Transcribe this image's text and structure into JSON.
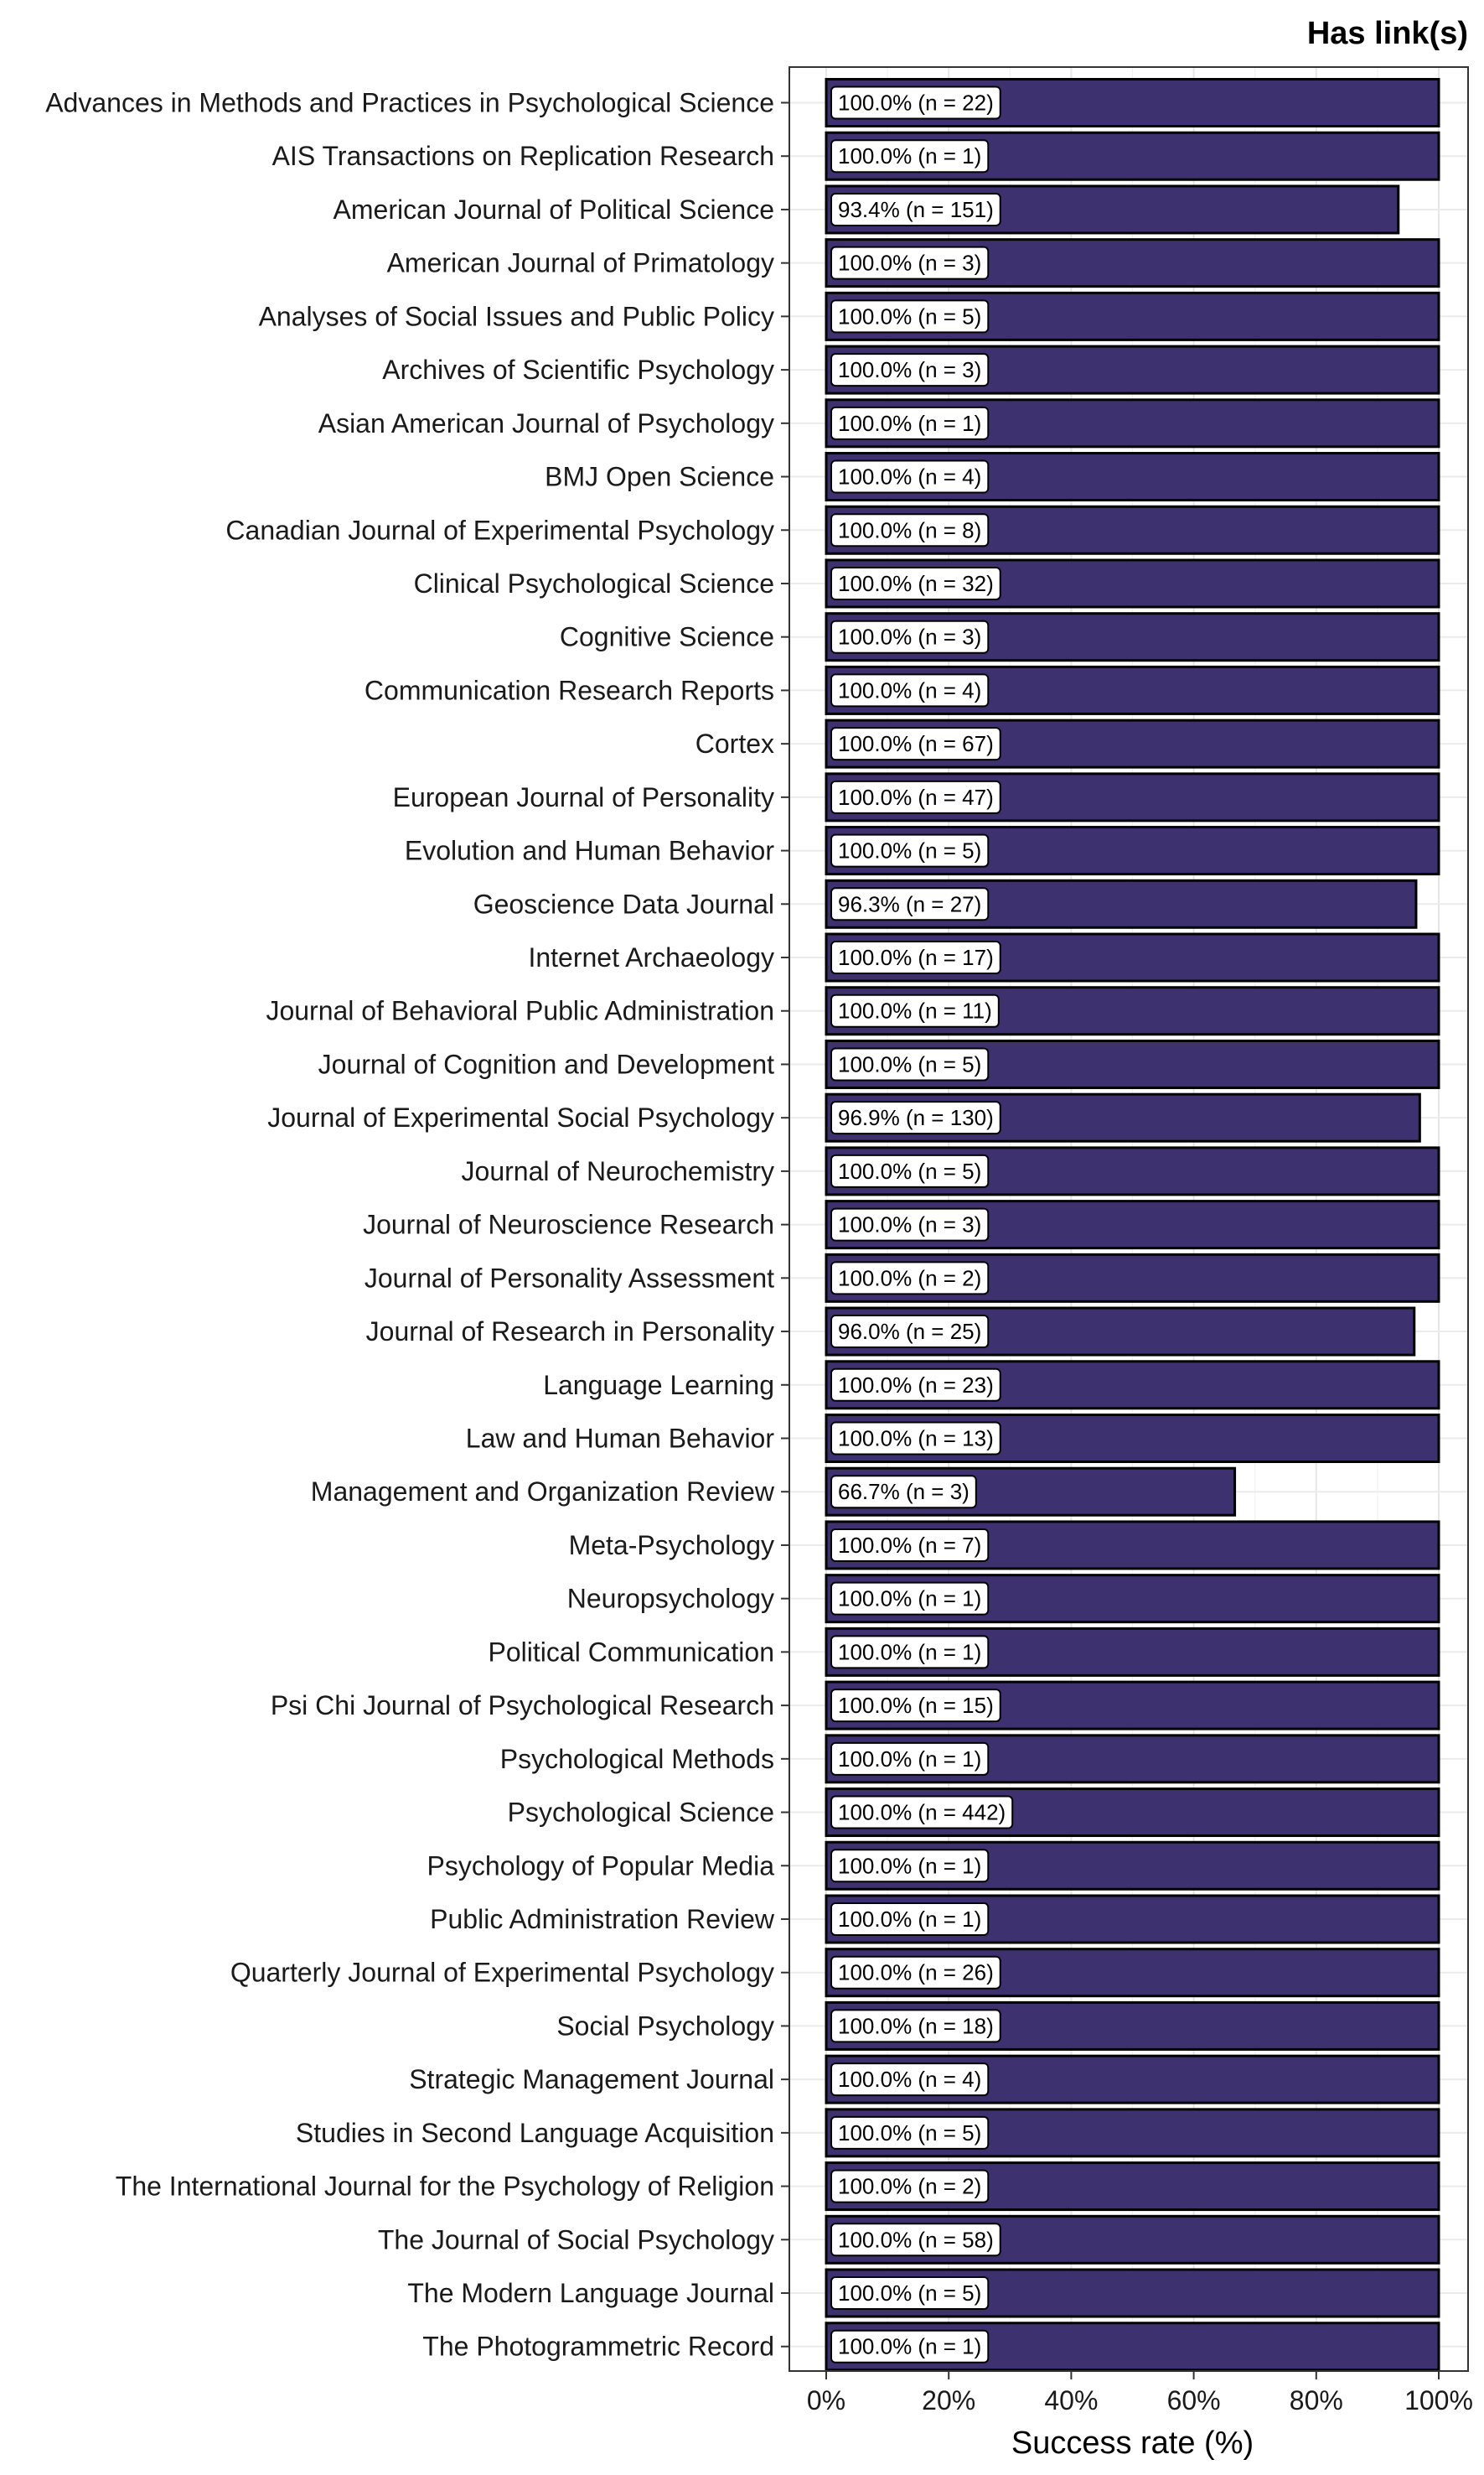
{
  "chart_data": {
    "type": "bar",
    "orientation": "horizontal",
    "title": "Has link(s)",
    "xlabel": "Success rate (%)",
    "ylabel": "",
    "xlim": [
      0,
      100
    ],
    "xticks": [
      "0%",
      "20%",
      "40%",
      "60%",
      "80%",
      "100%"
    ],
    "bar_color": "#3d3170",
    "grid": true,
    "categories": [
      "Advances in Methods and Practices in Psychological Science",
      "AIS Transactions on Replication Research",
      "American Journal of Political Science",
      "American Journal of Primatology",
      "Analyses of Social Issues and Public Policy",
      "Archives of Scientific Psychology",
      "Asian American Journal of Psychology",
      "BMJ Open Science",
      "Canadian Journal of Experimental Psychology",
      "Clinical Psychological Science",
      "Cognitive Science",
      "Communication Research Reports",
      "Cortex",
      "European Journal of Personality",
      "Evolution and Human Behavior",
      "Geoscience Data Journal",
      "Internet Archaeology",
      "Journal of Behavioral Public Administration",
      "Journal of Cognition and Development",
      "Journal of Experimental Social Psychology",
      "Journal of Neurochemistry",
      "Journal of Neuroscience Research",
      "Journal of Personality Assessment",
      "Journal of Research in Personality",
      "Language Learning",
      "Law and Human Behavior",
      "Management and Organization Review",
      "Meta-Psychology",
      "Neuropsychology",
      "Political Communication",
      "Psi Chi Journal of Psychological Research",
      "Psychological Methods",
      "Psychological Science",
      "Psychology of Popular Media",
      "Public Administration Review",
      "Quarterly Journal of Experimental Psychology",
      "Social Psychology",
      "Strategic Management Journal",
      "Studies in Second Language Acquisition",
      "The International Journal for the Psychology of Religion",
      "The Journal of Social Psychology",
      "The Modern Language Journal",
      "The Photogrammetric Record"
    ],
    "values": [
      100.0,
      100.0,
      93.4,
      100.0,
      100.0,
      100.0,
      100.0,
      100.0,
      100.0,
      100.0,
      100.0,
      100.0,
      100.0,
      100.0,
      100.0,
      96.3,
      100.0,
      100.0,
      100.0,
      96.9,
      100.0,
      100.0,
      100.0,
      96.0,
      100.0,
      100.0,
      66.7,
      100.0,
      100.0,
      100.0,
      100.0,
      100.0,
      100.0,
      100.0,
      100.0,
      100.0,
      100.0,
      100.0,
      100.0,
      100.0,
      100.0,
      100.0,
      100.0
    ],
    "labels": [
      "100.0% (n = 22)",
      "100.0% (n = 1)",
      "93.4% (n = 151)",
      "100.0% (n = 3)",
      "100.0% (n = 5)",
      "100.0% (n = 3)",
      "100.0% (n = 1)",
      "100.0% (n = 4)",
      "100.0% (n = 8)",
      "100.0% (n = 32)",
      "100.0% (n = 3)",
      "100.0% (n = 4)",
      "100.0% (n = 67)",
      "100.0% (n = 47)",
      "100.0% (n = 5)",
      "96.3% (n = 27)",
      "100.0% (n = 17)",
      "100.0% (n = 11)",
      "100.0% (n = 5)",
      "96.9% (n = 130)",
      "100.0% (n = 5)",
      "100.0% (n = 3)",
      "100.0% (n = 2)",
      "96.0% (n = 25)",
      "100.0% (n = 23)",
      "100.0% (n = 13)",
      "66.7% (n = 3)",
      "100.0% (n = 7)",
      "100.0% (n = 1)",
      "100.0% (n = 1)",
      "100.0% (n = 15)",
      "100.0% (n = 1)",
      "100.0% (n = 442)",
      "100.0% (n = 1)",
      "100.0% (n = 1)",
      "100.0% (n = 26)",
      "100.0% (n = 18)",
      "100.0% (n = 4)",
      "100.0% (n = 5)",
      "100.0% (n = 2)",
      "100.0% (n = 58)",
      "100.0% (n = 5)",
      "100.0% (n = 1)"
    ]
  }
}
